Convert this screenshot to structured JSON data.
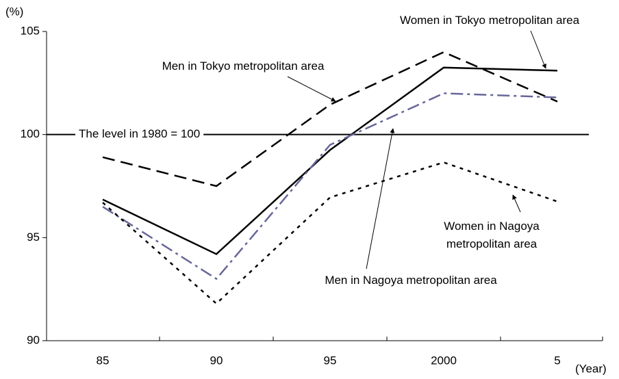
{
  "chart_data": {
    "type": "line",
    "y_label": "(%)",
    "x_label": "(Year)",
    "categories": [
      "85",
      "90",
      "95",
      "2000",
      "5"
    ],
    "series": [
      {
        "name": "Men in Tokyo metropolitan area",
        "color": "#000000",
        "style": "dashed",
        "values": [
          98.9,
          97.5,
          101.45,
          104.0,
          101.6
        ]
      },
      {
        "name": "Women in Tokyo metropolitan area",
        "color": "#000000",
        "style": "solid",
        "values": [
          96.85,
          94.2,
          99.25,
          103.25,
          103.1
        ]
      },
      {
        "name": "Men in Nagoya metropolitan area",
        "color": "#666699",
        "style": "dashdot",
        "values": [
          96.5,
          93.0,
          99.5,
          102.0,
          101.8
        ]
      },
      {
        "name": "Women in Nagoya metropolitan area",
        "color": "#000000",
        "style": "dotted",
        "values": [
          96.7,
          91.8,
          96.95,
          98.65,
          96.75
        ]
      }
    ],
    "reference_line": {
      "value": 100,
      "label": "The level in 1980 = 100"
    },
    "ylim": [
      90,
      105
    ],
    "yticks": [
      90,
      95,
      100,
      105
    ]
  }
}
